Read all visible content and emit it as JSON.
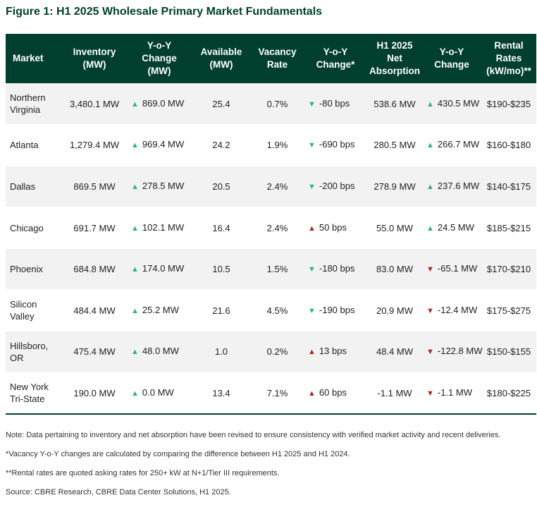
{
  "title": "Figure 1: H1 2025 Wholesale Primary Market Fundamentals",
  "colors": {
    "header_bg": "#003f2d",
    "title_color": "#003f2d",
    "arrow_green": "#2bb673",
    "arrow_red": "#b22222",
    "row_alt_bg": "#f2f2f2"
  },
  "headers": {
    "market": "Market",
    "inventory": [
      "Inventory",
      "(MW)"
    ],
    "yoy_change": [
      "Y-o-Y",
      "Change",
      "(MW)"
    ],
    "available": [
      "Available",
      "(MW)"
    ],
    "vacancy_rate": [
      "Vacancy",
      "Rate"
    ],
    "vacancy_yoy": [
      "Y-o-Y",
      "Change*"
    ],
    "net_absorption": [
      "H1 2025",
      "Net",
      "Absorption"
    ],
    "absorption_yoy": [
      "Y-o-Y",
      "Change"
    ],
    "rental_rates": [
      "Rental",
      "Rates",
      "(kW/mo)**"
    ]
  },
  "rows": [
    {
      "market": [
        "Northern",
        "Virginia"
      ],
      "inventory": "3,480.1 MW",
      "yoy_change": {
        "dir": "up",
        "color": "green",
        "value": "869.0 MW"
      },
      "available": "25.4",
      "vacancy_rate": "0.7%",
      "vacancy_yoy": {
        "dir": "down",
        "color": "green",
        "value": "-80 bps"
      },
      "net_absorption": "538.6 MW",
      "absorption_yoy": {
        "dir": "up",
        "color": "green",
        "value": "430.5 MW"
      },
      "rental_rates": "$190-$235"
    },
    {
      "market": [
        "Atlanta"
      ],
      "inventory": "1,279.4 MW",
      "yoy_change": {
        "dir": "up",
        "color": "green",
        "value": "969.4 MW"
      },
      "available": "24.2",
      "vacancy_rate": "1.9%",
      "vacancy_yoy": {
        "dir": "down",
        "color": "green",
        "value": "-690 bps"
      },
      "net_absorption": "280.5 MW",
      "absorption_yoy": {
        "dir": "up",
        "color": "green",
        "value": "266.7 MW"
      },
      "rental_rates": "$160-$180"
    },
    {
      "market": [
        "Dallas"
      ],
      "inventory": "869.5 MW",
      "yoy_change": {
        "dir": "up",
        "color": "green",
        "value": "278.5 MW"
      },
      "available": "20.5",
      "vacancy_rate": "2.4%",
      "vacancy_yoy": {
        "dir": "down",
        "color": "green",
        "value": "-200 bps"
      },
      "net_absorption": "278.9 MW",
      "absorption_yoy": {
        "dir": "up",
        "color": "green",
        "value": "237.6 MW"
      },
      "rental_rates": "$140-$175"
    },
    {
      "market": [
        "Chicago"
      ],
      "inventory": "691.7 MW",
      "yoy_change": {
        "dir": "up",
        "color": "green",
        "value": "102.1 MW"
      },
      "available": "16.4",
      "vacancy_rate": "2.4%",
      "vacancy_yoy": {
        "dir": "up",
        "color": "red",
        "value": "50 bps"
      },
      "net_absorption": "55.0 MW",
      "absorption_yoy": {
        "dir": "up",
        "color": "green",
        "value": "24.5 MW"
      },
      "rental_rates": "$185-$215"
    },
    {
      "market": [
        "Phoenix"
      ],
      "inventory": "684.8 MW",
      "yoy_change": {
        "dir": "up",
        "color": "green",
        "value": "174.0 MW"
      },
      "available": "10.5",
      "vacancy_rate": "1.5%",
      "vacancy_yoy": {
        "dir": "down",
        "color": "green",
        "value": "-180 bps"
      },
      "net_absorption": "83.0 MW",
      "absorption_yoy": {
        "dir": "down",
        "color": "red",
        "value": "-65.1 MW"
      },
      "rental_rates": "$170-$210"
    },
    {
      "market": [
        "Silicon",
        "Valley"
      ],
      "inventory": "484.4 MW",
      "yoy_change": {
        "dir": "up",
        "color": "green",
        "value": "25.2 MW"
      },
      "available": "21.6",
      "vacancy_rate": "4.5%",
      "vacancy_yoy": {
        "dir": "down",
        "color": "green",
        "value": "-190 bps"
      },
      "net_absorption": "20.9 MW",
      "absorption_yoy": {
        "dir": "down",
        "color": "red",
        "value": "-12.4 MW"
      },
      "rental_rates": "$175-$275"
    },
    {
      "market": [
        "Hillsboro,",
        "OR"
      ],
      "inventory": "475.4 MW",
      "yoy_change": {
        "dir": "up",
        "color": "green",
        "value": "48.0 MW"
      },
      "available": "1.0",
      "vacancy_rate": "0.2%",
      "vacancy_yoy": {
        "dir": "up",
        "color": "red",
        "value": "13 bps"
      },
      "net_absorption": "48.4 MW",
      "absorption_yoy": {
        "dir": "down",
        "color": "red",
        "value": "-122.8 MW"
      },
      "rental_rates": "$150-$155"
    },
    {
      "market": [
        "New York",
        "Tri-State"
      ],
      "inventory": "190.0 MW",
      "yoy_change": {
        "dir": "up",
        "color": "green",
        "value": "0.0 MW"
      },
      "available": "13.4",
      "vacancy_rate": "7.1%",
      "vacancy_yoy": {
        "dir": "up",
        "color": "red",
        "value": "60 bps"
      },
      "net_absorption": "-1.1 MW",
      "absorption_yoy": {
        "dir": "down",
        "color": "red",
        "value": "-1.1 MW"
      },
      "rental_rates": "$180-$225"
    }
  ],
  "notes": {
    "note": "Note: Data pertaining to inventory and net absorption have been revised to ensure consistency with verified market activity and recent deliveries.",
    "vacancy_footnote": "*Vacancy Y-o-Y changes are calculated by comparing the difference between H1 2025 and H1 2024.",
    "rental_footnote": "**Rental rates are quoted asking rates for 250+ kW at N+1/Tier III requirements.",
    "source": "Source: CBRE Research, CBRE Data Center Solutions, H1 2025."
  }
}
